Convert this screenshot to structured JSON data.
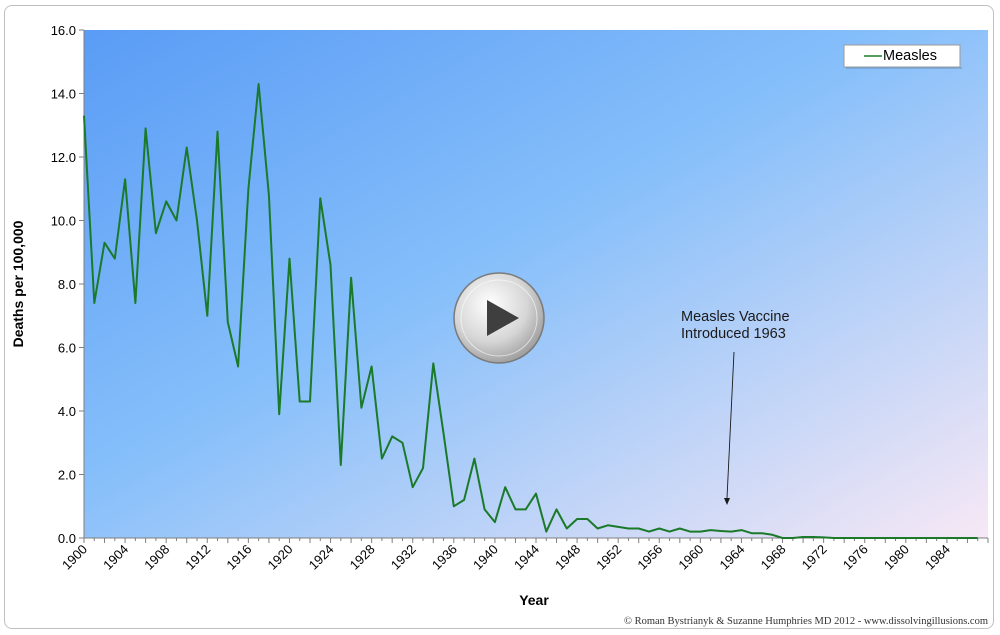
{
  "chart_data": {
    "type": "line",
    "xlabel": "Year",
    "ylabel": "Deaths per 100,000",
    "xlim": [
      1900,
      1988
    ],
    "ylim": [
      0,
      16
    ],
    "y_ticks": [
      "0.0",
      "2.0",
      "4.0",
      "6.0",
      "8.0",
      "10.0",
      "12.0",
      "14.0",
      "16.0"
    ],
    "x_ticks": [
      1900,
      1904,
      1908,
      1912,
      1916,
      1920,
      1924,
      1928,
      1932,
      1936,
      1940,
      1944,
      1948,
      1952,
      1956,
      1960,
      1964,
      1968,
      1972,
      1976,
      1980,
      1984
    ],
    "legend_position": "top-right",
    "background": "blue-to-pink gradient",
    "series": [
      {
        "name": "Measles",
        "color": "#1a7a2a",
        "x": [
          1900,
          1901,
          1902,
          1903,
          1904,
          1905,
          1906,
          1907,
          1908,
          1909,
          1910,
          1911,
          1912,
          1913,
          1914,
          1915,
          1916,
          1917,
          1918,
          1919,
          1920,
          1921,
          1922,
          1923,
          1924,
          1925,
          1926,
          1927,
          1928,
          1929,
          1930,
          1931,
          1932,
          1933,
          1934,
          1935,
          1936,
          1937,
          1938,
          1939,
          1940,
          1941,
          1942,
          1943,
          1944,
          1945,
          1946,
          1947,
          1948,
          1949,
          1950,
          1951,
          1952,
          1953,
          1954,
          1955,
          1956,
          1957,
          1958,
          1959,
          1960,
          1961,
          1962,
          1963,
          1964,
          1965,
          1966,
          1967,
          1968,
          1969,
          1970,
          1971,
          1972,
          1973,
          1974,
          1975,
          1976,
          1977,
          1978,
          1979,
          1980,
          1981,
          1982,
          1983,
          1984,
          1985,
          1986,
          1987
        ],
        "values": [
          13.3,
          7.4,
          9.3,
          8.8,
          11.3,
          7.4,
          12.9,
          9.6,
          10.6,
          10.0,
          12.3,
          10.0,
          7.0,
          12.8,
          6.8,
          5.4,
          11.0,
          14.3,
          10.8,
          3.9,
          8.8,
          4.3,
          4.3,
          10.7,
          8.6,
          2.3,
          8.2,
          4.1,
          5.4,
          2.5,
          3.2,
          3.0,
          1.6,
          2.2,
          5.5,
          3.3,
          1.0,
          1.2,
          2.5,
          0.9,
          0.5,
          1.6,
          0.9,
          0.9,
          1.4,
          0.2,
          0.9,
          0.3,
          0.6,
          0.6,
          0.3,
          0.4,
          0.35,
          0.3,
          0.3,
          0.2,
          0.3,
          0.2,
          0.3,
          0.2,
          0.2,
          0.25,
          0.22,
          0.2,
          0.25,
          0.15,
          0.15,
          0.1,
          0.0,
          0.0,
          0.03,
          0.03,
          0.02,
          0.0,
          0.0,
          0.0,
          0.0,
          0.0,
          0.0,
          0.0,
          0.0,
          0.0,
          0.0,
          0.0,
          0.0,
          0.0,
          0.0,
          0.0
        ]
      }
    ],
    "annotation": {
      "lines": [
        "Measles Vaccine",
        "Introduced 1963"
      ],
      "arrow_target": {
        "x": 1963,
        "y": 0.2
      }
    },
    "credit": "© Roman Bystrianyk & Suzanne Humphries MD 2012 - www.dissolvingillusions.com"
  },
  "colors": {
    "grad_top_left": "#5a9cf6",
    "grad_mid": "#86bffa",
    "grad_bottom_right": "#f7e8f5",
    "line": "#1a7a2a",
    "play_fill": "#cfcfcf"
  },
  "icons": {
    "play": "play-icon"
  }
}
